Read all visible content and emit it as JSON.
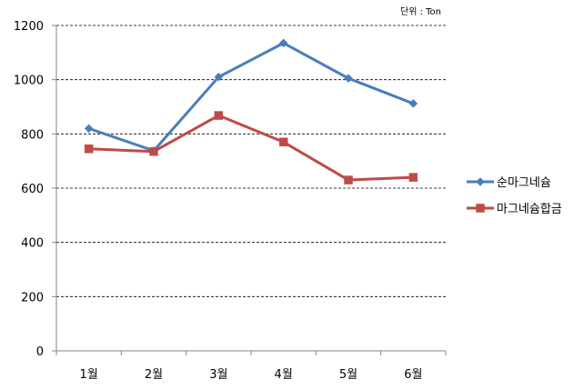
{
  "chart_data": {
    "type": "line",
    "unit_label": "단위 : Ton",
    "categories": [
      "1월",
      "2월",
      "3월",
      "4월",
      "5월",
      "6월"
    ],
    "ylim": [
      0,
      1200
    ],
    "yticks": [
      0,
      200,
      400,
      600,
      800,
      1000,
      1200
    ],
    "grid": true,
    "legend_position": "right",
    "series": [
      {
        "name": "순마그네슘",
        "color": "#4a7ebb",
        "marker": "diamond",
        "values": [
          820,
          738,
          1010,
          1135,
          1005,
          912
        ]
      },
      {
        "name": "마그네슘합금",
        "color": "#be4b48",
        "marker": "square",
        "values": [
          745,
          735,
          868,
          770,
          630,
          640
        ]
      }
    ]
  }
}
